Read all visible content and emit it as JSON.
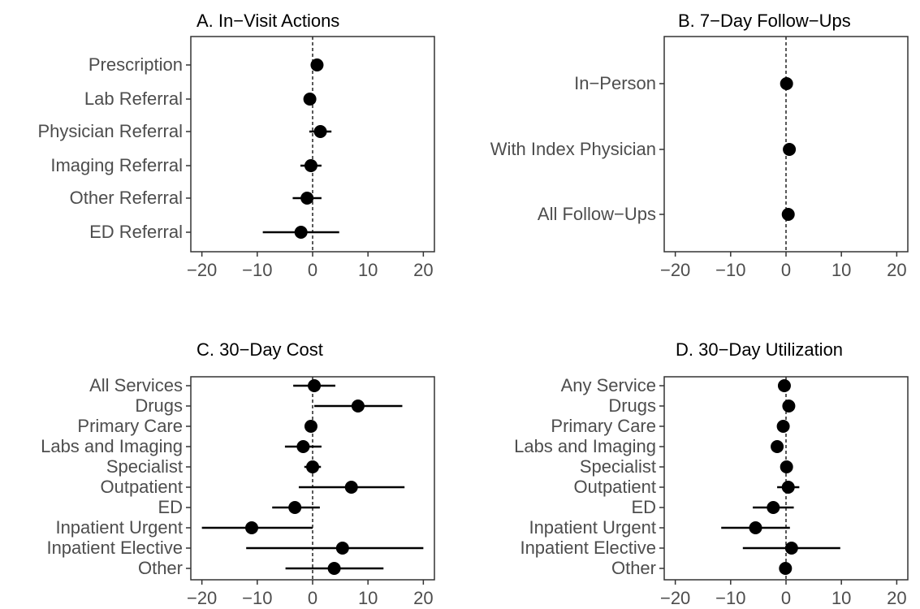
{
  "chart_data": [
    {
      "type": "scatter",
      "title": "A. In−Visit Actions",
      "categories": [
        "Prescription",
        "Lab Referral",
        "Physician Referral",
        "Imaging Referral",
        "Other Referral",
        "ED Referral"
      ],
      "estimates": [
        0.8,
        -0.5,
        1.4,
        -0.3,
        -1.0,
        -2.1
      ],
      "ci_low": [
        0.1,
        -1.2,
        -0.6,
        -2.2,
        -3.6,
        -9.0
      ],
      "ci_high": [
        1.5,
        0.2,
        3.4,
        1.6,
        1.6,
        4.8
      ],
      "xlim": [
        -22,
        22
      ],
      "xticks": [
        -20,
        -10,
        0,
        10,
        20
      ],
      "xtick_labels": [
        "−20",
        "−10",
        "0",
        "10",
        "20"
      ],
      "reference_line": 0,
      "grid": false
    },
    {
      "type": "scatter",
      "title": "B. 7−Day Follow−Ups",
      "categories": [
        "In−Person",
        "With Index Physician",
        "All Follow−Ups"
      ],
      "estimates": [
        0.1,
        0.6,
        0.4
      ],
      "ci_low": [
        -0.3,
        -0.5,
        -0.3
      ],
      "ci_high": [
        0.5,
        1.7,
        1.1
      ],
      "xlim": [
        -22,
        22
      ],
      "xticks": [
        -20,
        -10,
        0,
        10,
        20
      ],
      "xtick_labels": [
        "−20",
        "−10",
        "0",
        "10",
        "20"
      ],
      "reference_line": 0,
      "grid": false
    },
    {
      "type": "scatter",
      "title": "C. 30−Day Cost",
      "categories": [
        "All Services",
        "Drugs",
        "Primary Care",
        "Labs and Imaging",
        "Specialist",
        "Outpatient",
        "ED",
        "Inpatient Urgent",
        "Inpatient Elective",
        "Other"
      ],
      "estimates": [
        0.3,
        8.2,
        -0.3,
        -1.7,
        0.0,
        7.0,
        -3.2,
        -11.0,
        5.4,
        3.9
      ],
      "ci_low": [
        -3.5,
        0.3,
        -0.8,
        -5.0,
        -1.5,
        -2.5,
        -7.3,
        -20.0,
        -12.0,
        -4.9
      ],
      "ci_high": [
        4.1,
        16.2,
        0.2,
        1.6,
        1.5,
        16.6,
        1.3,
        0.0,
        20.0,
        12.8
      ],
      "xlim": [
        -22,
        22
      ],
      "xticks": [
        -20,
        -10,
        0,
        10,
        20
      ],
      "xtick_labels": [
        "−20",
        "−10",
        "0",
        "10",
        "20"
      ],
      "reference_line": 0,
      "grid": false
    },
    {
      "type": "scatter",
      "title": "D. 30−Day Utilization",
      "categories": [
        "Any Service",
        "Drugs",
        "Primary Care",
        "Labs and Imaging",
        "Specialist",
        "Outpatient",
        "ED",
        "Inpatient Urgent",
        "Inpatient Elective",
        "Other"
      ],
      "estimates": [
        -0.3,
        0.5,
        -0.5,
        -1.6,
        0.1,
        0.4,
        -2.3,
        -5.5,
        1.0,
        -0.1
      ],
      "ci_low": [
        -0.8,
        0.0,
        -1.0,
        -2.3,
        -0.6,
        -1.6,
        -6.0,
        -11.7,
        -7.8,
        -1.0
      ],
      "ci_high": [
        0.2,
        1.0,
        0.0,
        -0.9,
        0.8,
        2.4,
        1.4,
        0.7,
        9.8,
        0.8
      ],
      "xlim": [
        -22,
        22
      ],
      "xticks": [
        -20,
        -10,
        0,
        10,
        20
      ],
      "xtick_labels": [
        "−20",
        "−10",
        "0",
        "10",
        "20"
      ],
      "reference_line": 0,
      "grid": false
    }
  ]
}
